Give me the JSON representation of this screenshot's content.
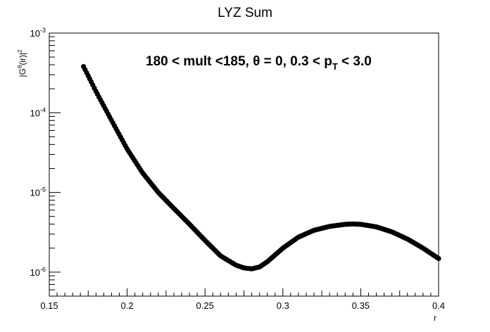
{
  "chart_data": {
    "type": "scatter",
    "title": "LYZ Sum",
    "xlabel": "r",
    "ylabel": "|G^{θ}(ir)|^{2}",
    "ylabel_parts": {
      "main": "|G",
      "sup1": "θ",
      "mid": "(ir)|",
      "sup2": "2"
    },
    "annotation": {
      "before": "180 < mult <185, θ = 0, 0.3 < p",
      "sub": "T",
      "after": " < 3.0"
    },
    "xlim": [
      0.15,
      0.4
    ],
    "ylim": [
      5e-07,
      0.001
    ],
    "yscale": "log",
    "grid": false,
    "legend": "none",
    "xticks": [
      0.15,
      0.2,
      0.25,
      0.3,
      0.35,
      0.4
    ],
    "xtick_labels": [
      "0.15",
      "0.2",
      "0.25",
      "0.3",
      "0.35",
      "0.4"
    ],
    "yticks": [
      {
        "exp": "-6",
        "value": 1e-06
      },
      {
        "exp": "-5",
        "value": 1e-05
      },
      {
        "exp": "-4",
        "value": 0.0001
      },
      {
        "exp": "-3",
        "value": 0.001
      }
    ],
    "ytick_base": "10",
    "marker_color": "#000000",
    "series": [
      {
        "x": [
          0.172,
          0.18,
          0.19,
          0.2,
          0.21,
          0.22,
          0.23,
          0.24,
          0.25,
          0.26,
          0.27,
          0.275,
          0.28,
          0.285,
          0.29,
          0.3,
          0.31,
          0.32,
          0.33,
          0.34,
          0.345,
          0.35,
          0.36,
          0.37,
          0.38,
          0.39,
          0.4
        ],
        "y": [
          0.00038,
          0.000185,
          8e-05,
          3.5e-05,
          1.75e-05,
          1e-05,
          6.3e-06,
          4e-06,
          2.5e-06,
          1.6e-06,
          1.22e-06,
          1.13e-06,
          1.1e-06,
          1.16e-06,
          1.35e-06,
          2e-06,
          2.75e-06,
          3.35e-06,
          3.75e-06,
          3.98e-06,
          4.02e-06,
          3.98e-06,
          3.7e-06,
          3.2e-06,
          2.6e-06,
          2e-06,
          1.48e-06
        ]
      }
    ]
  }
}
